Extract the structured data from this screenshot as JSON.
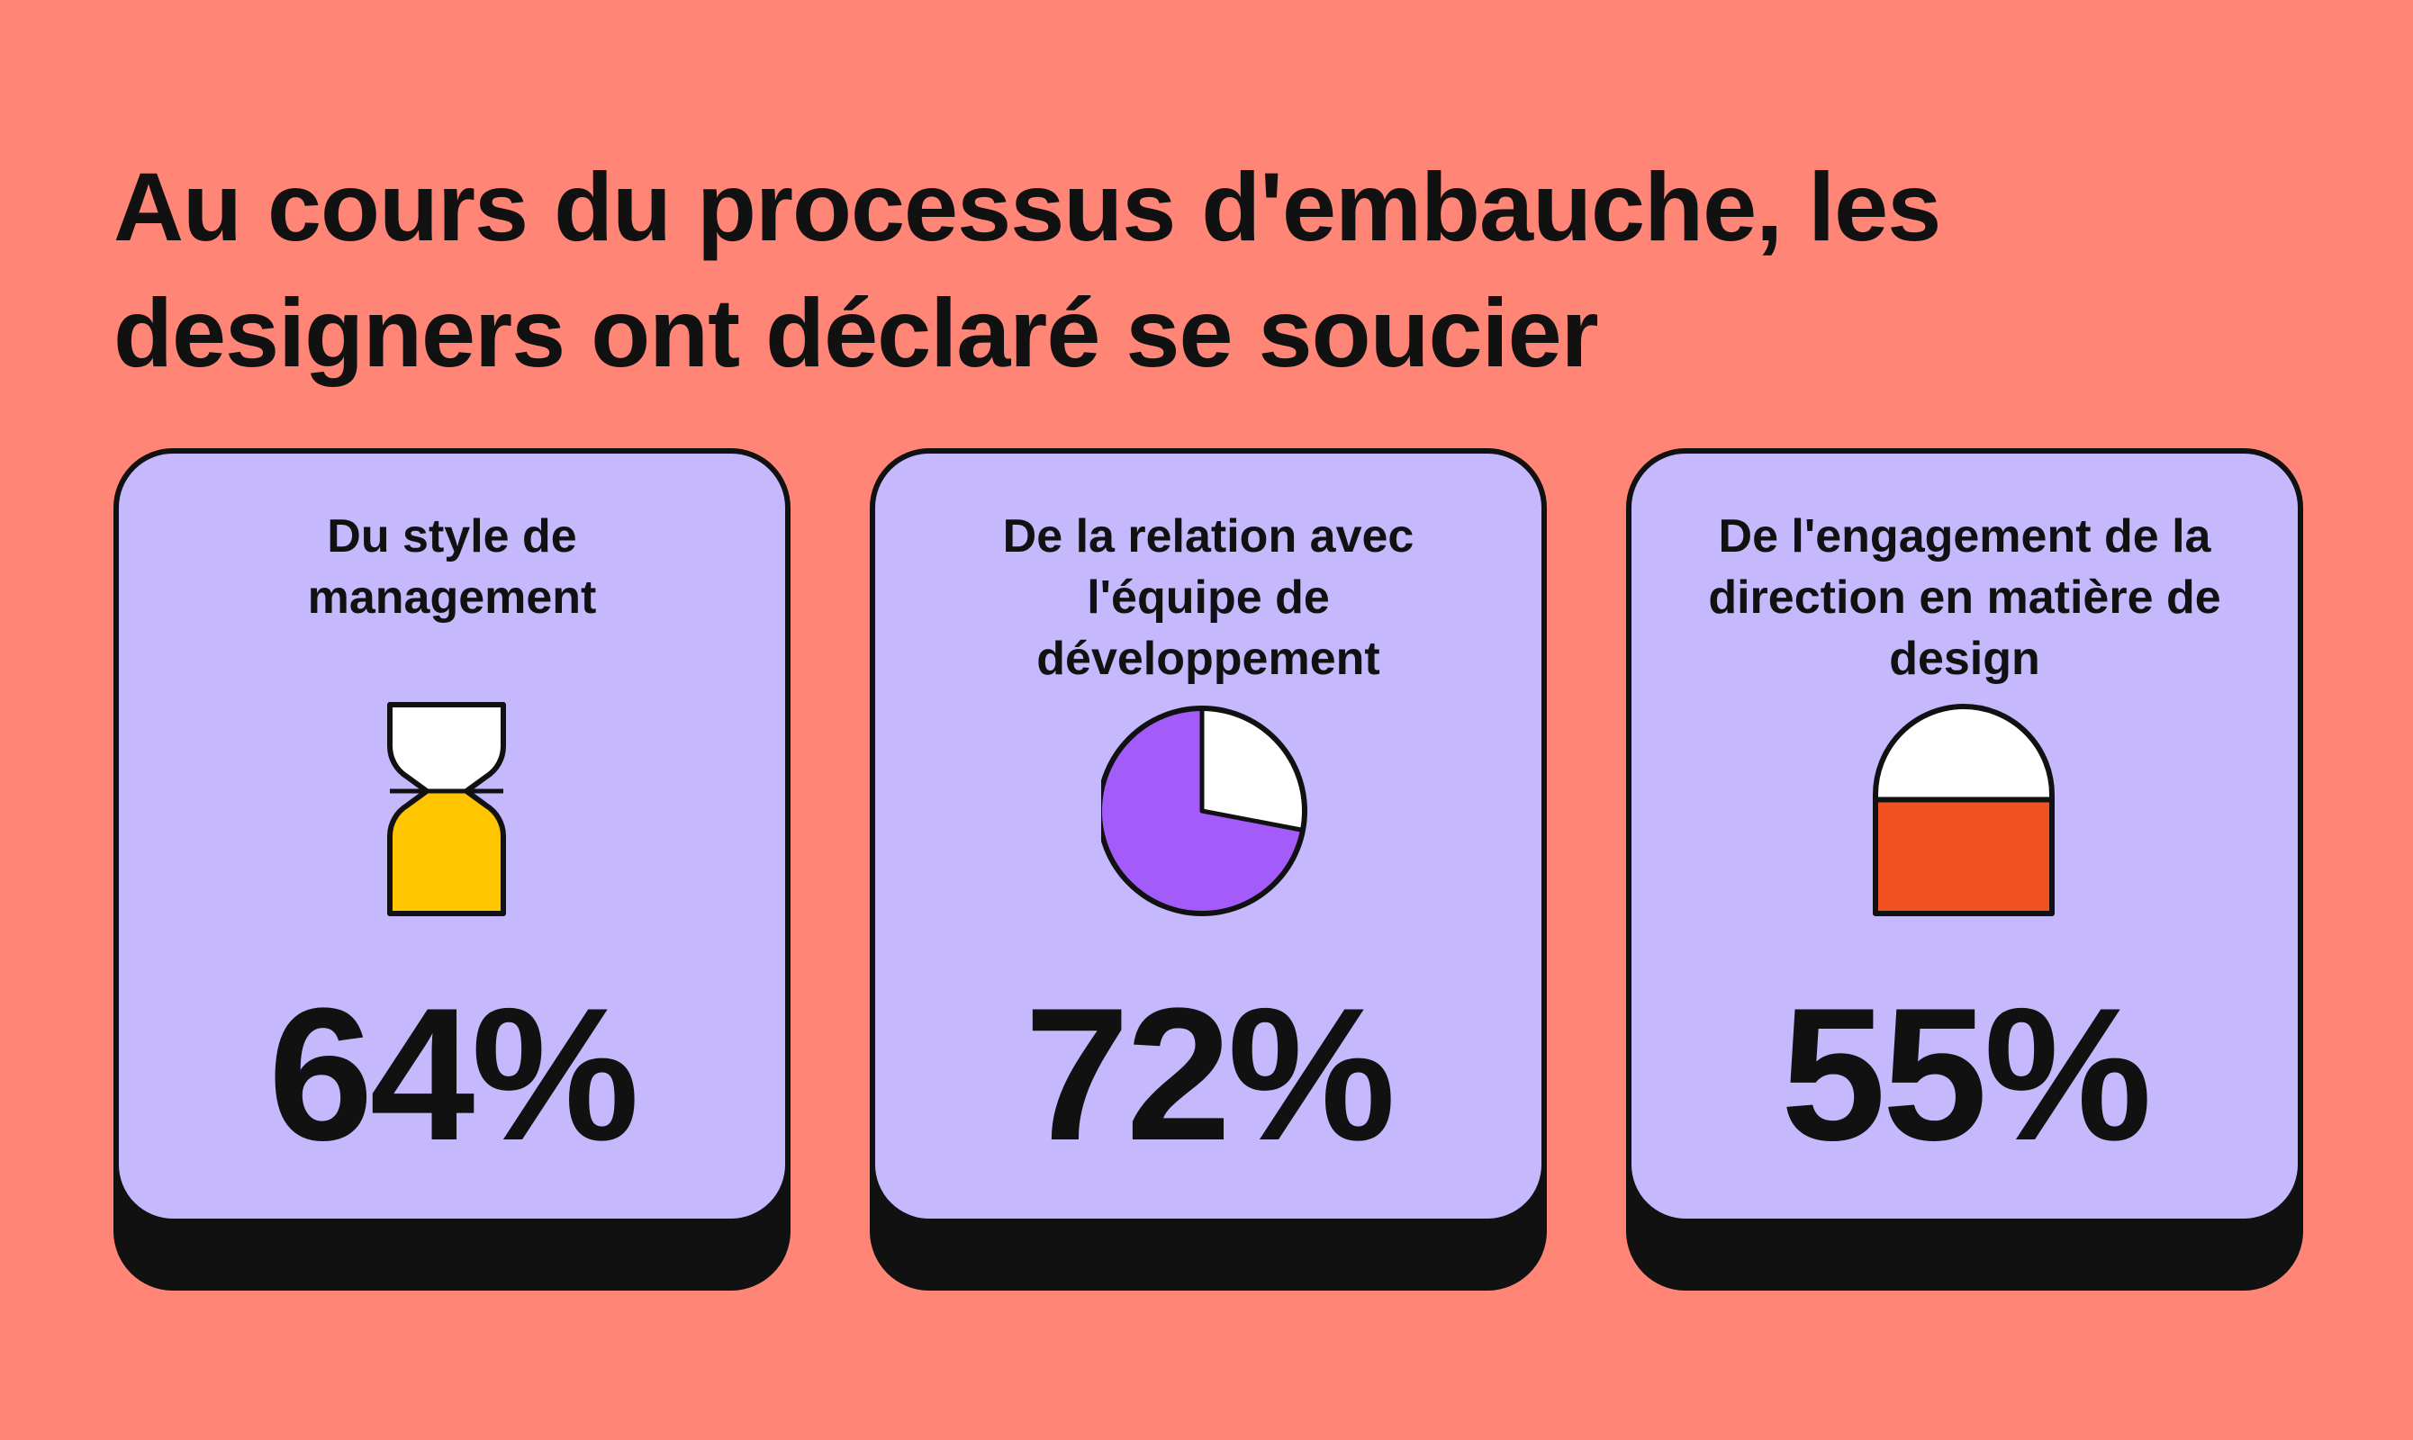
{
  "title": {
    "line1": "Au cours du processus d'embauche, les",
    "line2": "designers ont déclaré se soucier"
  },
  "chart_data": {
    "type": "infographic",
    "cards": [
      {
        "label_lines": [
          "Du style de",
          "management"
        ],
        "value": 64,
        "display": "64%",
        "icon": "hourglass-icon",
        "fill_color": "#FFC500"
      },
      {
        "label_lines": [
          "De la relation avec",
          "l'équipe de",
          "développement"
        ],
        "value": 72,
        "display": "72%",
        "icon": "pie-chart-icon",
        "fill_color": "#A35CFA"
      },
      {
        "label_lines": [
          "De l'engagement de la",
          "direction en matière de",
          "design"
        ],
        "value": 55,
        "display": "55%",
        "icon": "arch-fill-icon",
        "fill_color": "#F15120"
      }
    ]
  },
  "colors": {
    "background": "#FF8577",
    "card": "#C5B8FC",
    "outline": "#111111",
    "empty": "#FFFFFF"
  }
}
